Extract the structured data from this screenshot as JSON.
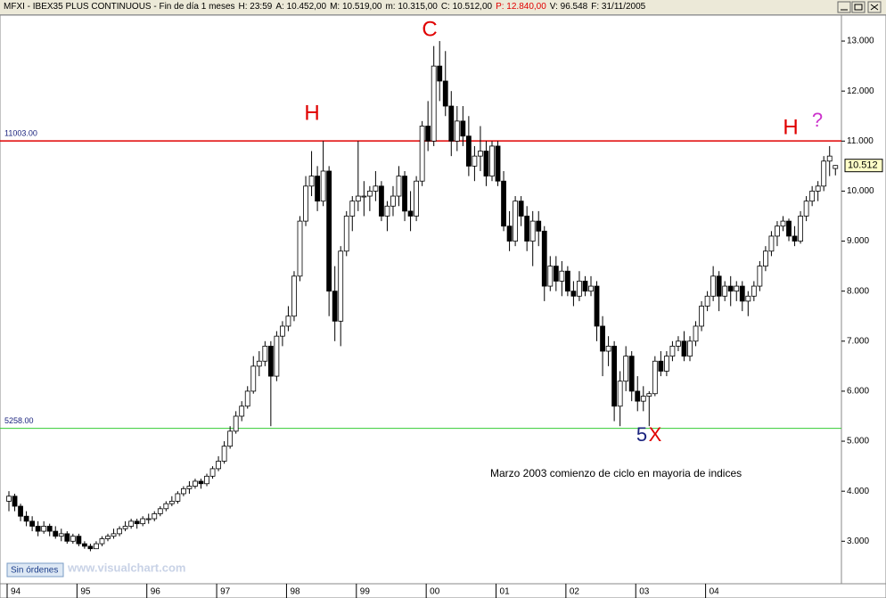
{
  "header": {
    "symbol": "MFXI - IBEX35 PLUS CONTINUOUS - Fin de día 1 meses",
    "fields": [
      "H: 23:59",
      "A: 10.452,00",
      "M: 10.519,00",
      "m: 10.315,00",
      "C: 10.512,00",
      "P: 12.840,00",
      "V: 96.548",
      "F: 31/11/2005"
    ]
  },
  "footer": {
    "status": "Sin órdenes",
    "website": "www.visualchart.com"
  },
  "chart_data": {
    "type": "candlestick",
    "grid": false,
    "up_color": "#ffffff",
    "down_color": "#000000",
    "ylim": [
      2150,
      13500
    ],
    "yticks": [
      {
        "value": 3000,
        "label": "3.000"
      },
      {
        "value": 4000,
        "label": "4.000"
      },
      {
        "value": 5000,
        "label": "5.000"
      },
      {
        "value": 6000,
        "label": "6.000"
      },
      {
        "value": 7000,
        "label": "7.000"
      },
      {
        "value": 8000,
        "label": "8.000"
      },
      {
        "value": 9000,
        "label": "9.000"
      },
      {
        "value": 10000,
        "label": "10.000"
      },
      {
        "value": 11000,
        "label": "11.000"
      },
      {
        "value": 12000,
        "label": "12.000"
      },
      {
        "value": 13000,
        "label": "13.000"
      }
    ],
    "categories": [
      "94",
      null,
      null,
      null,
      null,
      null,
      null,
      null,
      null,
      null,
      null,
      null,
      "95",
      null,
      null,
      null,
      null,
      null,
      null,
      null,
      null,
      null,
      null,
      null,
      "96",
      null,
      null,
      null,
      null,
      null,
      null,
      null,
      null,
      null,
      null,
      null,
      "97",
      null,
      null,
      null,
      null,
      null,
      null,
      null,
      null,
      null,
      null,
      null,
      "98",
      null,
      null,
      null,
      null,
      null,
      null,
      null,
      null,
      null,
      null,
      null,
      "99",
      null,
      null,
      null,
      null,
      null,
      null,
      null,
      null,
      null,
      null,
      null,
      "00",
      null,
      null,
      null,
      null,
      null,
      null,
      null,
      null,
      null,
      null,
      null,
      "01",
      null,
      null,
      null,
      null,
      null,
      null,
      null,
      null,
      null,
      null,
      null,
      "02",
      null,
      null,
      null,
      null,
      null,
      null,
      null,
      null,
      null,
      null,
      null,
      "03",
      null,
      null,
      null,
      null,
      null,
      null,
      null,
      null,
      null,
      null,
      null,
      "04",
      null,
      null,
      null,
      null,
      null,
      null,
      null,
      null,
      null,
      null,
      null,
      null,
      null,
      null,
      null,
      null,
      null,
      null,
      null,
      null,
      null,
      null
    ],
    "candles": [
      [
        3800,
        4000,
        3600,
        3900
      ],
      [
        3900,
        3950,
        3600,
        3700
      ],
      [
        3700,
        3750,
        3400,
        3500
      ],
      [
        3500,
        3600,
        3300,
        3400
      ],
      [
        3400,
        3500,
        3200,
        3300
      ],
      [
        3300,
        3400,
        3100,
        3200
      ],
      [
        3200,
        3400,
        3150,
        3300
      ],
      [
        3300,
        3350,
        3100,
        3200
      ],
      [
        3200,
        3300,
        3050,
        3100
      ],
      [
        3100,
        3250,
        3000,
        3150
      ],
      [
        3150,
        3200,
        2950,
        3000
      ],
      [
        3000,
        3150,
        2950,
        3100
      ],
      [
        3100,
        3150,
        2900,
        2950
      ],
      [
        2950,
        3000,
        2850,
        2900
      ],
      [
        2900,
        2950,
        2800,
        2850
      ],
      [
        2850,
        3000,
        2850,
        2950
      ],
      [
        2950,
        3100,
        2900,
        3050
      ],
      [
        3050,
        3150,
        3000,
        3100
      ],
      [
        3100,
        3250,
        3050,
        3150
      ],
      [
        3150,
        3300,
        3100,
        3250
      ],
      [
        3250,
        3400,
        3200,
        3300
      ],
      [
        3300,
        3450,
        3250,
        3400
      ],
      [
        3400,
        3450,
        3250,
        3350
      ],
      [
        3350,
        3500,
        3300,
        3450
      ],
      [
        3450,
        3550,
        3350,
        3450
      ],
      [
        3450,
        3600,
        3400,
        3550
      ],
      [
        3550,
        3700,
        3500,
        3650
      ],
      [
        3650,
        3800,
        3600,
        3750
      ],
      [
        3750,
        3900,
        3700,
        3800
      ],
      [
        3800,
        4000,
        3750,
        3950
      ],
      [
        3950,
        4100,
        3900,
        4050
      ],
      [
        4050,
        4200,
        3950,
        4100
      ],
      [
        4100,
        4250,
        4050,
        4200
      ],
      [
        4200,
        4250,
        4050,
        4150
      ],
      [
        4150,
        4350,
        4100,
        4300
      ],
      [
        4300,
        4500,
        4250,
        4450
      ],
      [
        4450,
        4700,
        4400,
        4600
      ],
      [
        4600,
        5000,
        4550,
        4900
      ],
      [
        4900,
        5300,
        4850,
        5200
      ],
      [
        5200,
        5600,
        5150,
        5500
      ],
      [
        5500,
        5800,
        5400,
        5700
      ],
      [
        5700,
        6100,
        5650,
        6000
      ],
      [
        6000,
        6700,
        5950,
        6500
      ],
      [
        6500,
        6800,
        6300,
        6600
      ],
      [
        6600,
        7000,
        6500,
        6900
      ],
      [
        6900,
        7000,
        5300,
        6300
      ],
      [
        6300,
        7200,
        6200,
        7100
      ],
      [
        7100,
        7400,
        6900,
        7300
      ],
      [
        7300,
        7700,
        7200,
        7500
      ],
      [
        7500,
        8400,
        7400,
        8300
      ],
      [
        8300,
        9500,
        8200,
        9400
      ],
      [
        9400,
        10300,
        9300,
        10100
      ],
      [
        10100,
        10800,
        9900,
        10300
      ],
      [
        10300,
        10500,
        9600,
        9800
      ],
      [
        9800,
        11000,
        9700,
        10400
      ],
      [
        10400,
        10500,
        7500,
        8000
      ],
      [
        8000,
        8500,
        7000,
        7400
      ],
      [
        7400,
        8900,
        6900,
        8800
      ],
      [
        8800,
        9600,
        8700,
        9500
      ],
      [
        9500,
        9900,
        9200,
        9800
      ],
      [
        9800,
        11000,
        9600,
        9900
      ],
      [
        9900,
        10200,
        9500,
        9900
      ],
      [
        9900,
        10100,
        9600,
        10000
      ],
      [
        10000,
        10400,
        9800,
        10100
      ],
      [
        10100,
        10200,
        9400,
        9500
      ],
      [
        9500,
        9800,
        9200,
        9700
      ],
      [
        9700,
        10100,
        9500,
        9900
      ],
      [
        9900,
        10500,
        9700,
        10300
      ],
      [
        10300,
        10400,
        9400,
        9600
      ],
      [
        9600,
        10000,
        9200,
        9500
      ],
      [
        9500,
        10300,
        9400,
        10200
      ],
      [
        10200,
        11400,
        10100,
        11300
      ],
      [
        11300,
        11800,
        10800,
        11000
      ],
      [
        11000,
        12900,
        10900,
        12500
      ],
      [
        12500,
        13000,
        11800,
        12200
      ],
      [
        12200,
        12800,
        11500,
        11700
      ],
      [
        11700,
        12000,
        10700,
        11000
      ],
      [
        11000,
        11700,
        10800,
        11400
      ],
      [
        11400,
        11700,
        10900,
        11100
      ],
      [
        11100,
        11500,
        10300,
        10500
      ],
      [
        10500,
        10900,
        10200,
        10700
      ],
      [
        10700,
        11300,
        10400,
        10800
      ],
      [
        10800,
        11000,
        10100,
        10300
      ],
      [
        10300,
        11000,
        10200,
        10900
      ],
      [
        10900,
        11000,
        10100,
        10200
      ],
      [
        10200,
        10400,
        9200,
        9300
      ],
      [
        9300,
        9600,
        8800,
        9000
      ],
      [
        9000,
        9900,
        8900,
        9800
      ],
      [
        9800,
        9900,
        9300,
        9500
      ],
      [
        9500,
        9700,
        8800,
        9000
      ],
      [
        9000,
        9600,
        8500,
        9400
      ],
      [
        9400,
        9600,
        8900,
        9200
      ],
      [
        9200,
        9300,
        7800,
        8100
      ],
      [
        8100,
        8700,
        8000,
        8500
      ],
      [
        8500,
        8700,
        8000,
        8200
      ],
      [
        8200,
        8600,
        7900,
        8400
      ],
      [
        8400,
        8500,
        7900,
        8000
      ],
      [
        8000,
        8200,
        7700,
        7900
      ],
      [
        7900,
        8400,
        7800,
        8200
      ],
      [
        8200,
        8300,
        7900,
        8000
      ],
      [
        8000,
        8300,
        7900,
        8100
      ],
      [
        8100,
        8200,
        7000,
        7300
      ],
      [
        7300,
        7500,
        6300,
        6800
      ],
      [
        6800,
        7100,
        6500,
        6900
      ],
      [
        6900,
        7000,
        5400,
        5700
      ],
      [
        5700,
        6400,
        5300,
        6200
      ],
      [
        6200,
        6900,
        6000,
        6700
      ],
      [
        6700,
        6800,
        5800,
        6000
      ],
      [
        6000,
        6300,
        5600,
        5800
      ],
      [
        5800,
        6100,
        5600,
        5900
      ],
      [
        5900,
        6000,
        5300,
        5950
      ],
      [
        5950,
        6700,
        5900,
        6600
      ],
      [
        6600,
        6800,
        6300,
        6400
      ],
      [
        6400,
        6800,
        6300,
        6700
      ],
      [
        6700,
        7000,
        6600,
        6900
      ],
      [
        6900,
        7100,
        6800,
        7000
      ],
      [
        7000,
        7200,
        6600,
        6700
      ],
      [
        6700,
        7100,
        6600,
        7000
      ],
      [
        7000,
        7400,
        6900,
        7300
      ],
      [
        7300,
        7800,
        7200,
        7700
      ],
      [
        7700,
        8000,
        7600,
        7900
      ],
      [
        7900,
        8500,
        7800,
        8300
      ],
      [
        8300,
        8400,
        7600,
        7900
      ],
      [
        7900,
        8200,
        7800,
        8100
      ],
      [
        8100,
        8300,
        7700,
        8000
      ],
      [
        8000,
        8200,
        7800,
        8100
      ],
      [
        8100,
        8200,
        7600,
        7800
      ],
      [
        7800,
        8000,
        7500,
        7900
      ],
      [
        7900,
        8200,
        7800,
        8100
      ],
      [
        8100,
        8600,
        8000,
        8500
      ],
      [
        8500,
        8900,
        8400,
        8800
      ],
      [
        8800,
        9200,
        8700,
        9100
      ],
      [
        9100,
        9400,
        8900,
        9300
      ],
      [
        9300,
        9500,
        9200,
        9400
      ],
      [
        9400,
        9450,
        9000,
        9100
      ],
      [
        9100,
        9300,
        8900,
        9000
      ],
      [
        9000,
        9600,
        8950,
        9500
      ],
      [
        9500,
        9900,
        9400,
        9800
      ],
      [
        9800,
        10100,
        9700,
        10000
      ],
      [
        10000,
        10200,
        9800,
        10100
      ],
      [
        10100,
        10700,
        10000,
        10600
      ],
      [
        10600,
        10900,
        10300,
        10700
      ],
      [
        10452,
        10519,
        10315,
        10512
      ]
    ],
    "hlines": [
      {
        "value": 11003,
        "label": "11003.00",
        "color": "#e00000"
      },
      {
        "value": 5258,
        "label": "5258.00",
        "color": "#33cc33"
      }
    ],
    "last_price": {
      "value": 10512,
      "label": "10.512"
    },
    "annotations": [
      {
        "text": "C",
        "color": "#e00000"
      },
      {
        "text": "H",
        "color": "#e00000"
      },
      {
        "text": "H",
        "color": "#e00000"
      },
      {
        "text": "?",
        "color": "#cc33cc"
      },
      {
        "text": "5",
        "color": "#1a237e"
      },
      {
        "text": "X",
        "color": "#e00000"
      },
      {
        "text": "Marzo 2003 comienzo de ciclo en mayoria de indices",
        "color": "#000000"
      }
    ]
  }
}
